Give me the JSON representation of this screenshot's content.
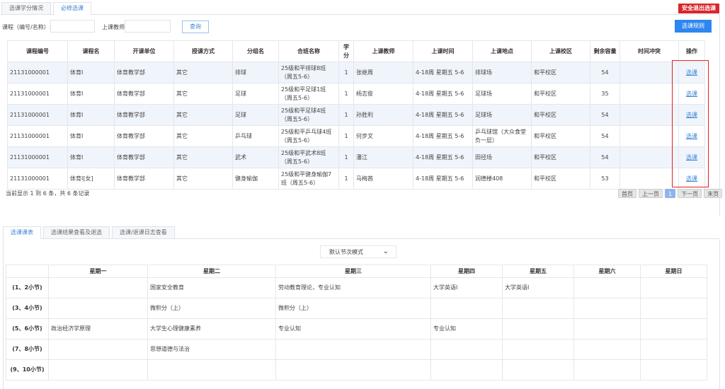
{
  "top_tabs": [
    {
      "label": "选课学分情况",
      "active": false
    },
    {
      "label": "必修选课",
      "active": true
    }
  ],
  "exit_button": "安全退出选课",
  "search": {
    "course_label": "课程（编号/名称）:",
    "course_value": "",
    "teacher_label": "上课教师:",
    "teacher_value": "",
    "query_button": "查询"
  },
  "rules_button": "选课规则",
  "course_table": {
    "headers": [
      "课程编号",
      "课程名",
      "开课单位",
      "授课方式",
      "分组名",
      "合班名称",
      "学分",
      "上课教师",
      "上课时间",
      "上课地点",
      "上课校区",
      "剩余容量",
      "时间冲突",
      "操作"
    ],
    "rows": [
      [
        "21131000001",
        "体育Ⅰ",
        "体育教学部",
        "其它",
        "排球",
        "25级和平排球8班（周五5-6）",
        "1",
        "张继周",
        "4-18周 星期五 5-6",
        "排球场",
        "和平校区",
        "54",
        "",
        "选课"
      ],
      [
        "21131000001",
        "体育Ⅰ",
        "体育教学部",
        "其它",
        "足球",
        "25级和平足球1班（周五5-6）",
        "1",
        "杨志俊",
        "4-18周 星期五 5-6",
        "足球场",
        "和平校区",
        "35",
        "",
        "选课"
      ],
      [
        "21131000001",
        "体育Ⅰ",
        "体育教学部",
        "其它",
        "足球",
        "25级和平足球4班（周五5-6）",
        "1",
        "孙胜利",
        "4-18周 星期五 5-6",
        "足球场",
        "和平校区",
        "54",
        "",
        "选课"
      ],
      [
        "21131000001",
        "体育Ⅰ",
        "体育教学部",
        "其它",
        "乒乓球",
        "25级和平乒乓球4班（周五5-6）",
        "1",
        "何步文",
        "4-18周 星期五 5-6",
        "乒乓球馆（大众食堂负一层）",
        "和平校区",
        "54",
        "",
        "选课"
      ],
      [
        "21131000001",
        "体育Ⅰ",
        "体育教学部",
        "其它",
        "武术",
        "25级和平武术8班（周五5-6）",
        "1",
        "潘江",
        "4-18周 星期五 5-6",
        "田径场",
        "和平校区",
        "54",
        "",
        "选课"
      ],
      [
        "21131000001",
        "体育Ⅰ[女]",
        "体育教学部",
        "其它",
        "健身瑜伽",
        "25级和平健身瑜伽7班（周五5-6）",
        "1",
        "马梅茜",
        "4-18周 星期五 5-6",
        "润德楼408",
        "和平校区",
        "53",
        "",
        "选课"
      ]
    ],
    "summary": "当前显示 1 到 6 条，共 6 条记录",
    "pagination": {
      "first": "首页",
      "prev": "上一页",
      "current": "1",
      "next": "下一页",
      "last": "末页"
    },
    "highlight_color": "#e02020"
  },
  "bottom_tabs": [
    {
      "label": "选课课表",
      "active": true
    },
    {
      "label": "选课结果查看及退选",
      "active": false
    },
    {
      "label": "选课/退课日志查看",
      "active": false
    }
  ],
  "mode_select": {
    "value": "默认节次模式"
  },
  "schedule": {
    "headers": [
      "",
      "星期一",
      "星期二",
      "星期三",
      "星期四",
      "星期五",
      "星期六",
      "星期日"
    ],
    "rows": [
      [
        "(1、2小节)",
        "",
        "国家安全教育",
        "劳动教育理论，专业认知",
        "大学英语Ⅰ",
        "大学英语Ⅰ",
        "",
        ""
      ],
      [
        "(3、4小节)",
        "",
        "微积分（上）",
        "微积分（上）",
        "",
        "",
        "",
        ""
      ],
      [
        "(5、6小节)",
        "政治经济学原理",
        "大学生心理健康素养",
        "专业认知",
        "专业认知",
        "",
        "",
        ""
      ],
      [
        "(7、8小节)",
        "",
        "思想道德与法治",
        "",
        "",
        "",
        "",
        ""
      ],
      [
        "(9、10小节)",
        "",
        "",
        "",
        "",
        "",
        "",
        ""
      ]
    ]
  }
}
